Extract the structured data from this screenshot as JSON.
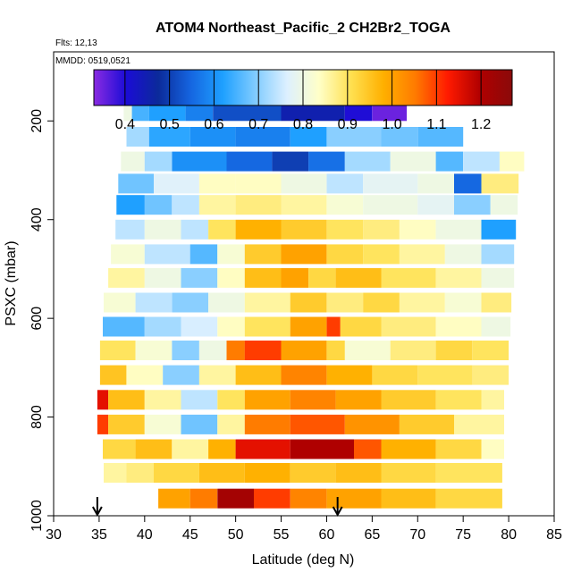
{
  "chart_data": {
    "type": "heatmap",
    "title": "ATOM4 Northeast_Pacific_2 CH2Br2_TOGA",
    "flights_label": "Flts: 12,13",
    "dates_label": "MMDD: 0519,0521",
    "xlabel": "Latitude (deg N)",
    "ylabel": "PSXC (mbar)",
    "xlim": [
      30,
      85
    ],
    "ylim": [
      1000,
      60
    ],
    "x_ticks": [
      30,
      35,
      40,
      45,
      50,
      55,
      60,
      65,
      70,
      75,
      80,
      85
    ],
    "x_tick_labels": [
      "30",
      "35",
      "40",
      "45",
      "50",
      "55",
      "60",
      "65",
      "70",
      "75",
      "80",
      "85"
    ],
    "y_ticks": [
      200,
      400,
      600,
      800,
      1000
    ],
    "y_tick_labels": [
      "200",
      "400",
      "600",
      "800",
      "1000"
    ],
    "colorbar": {
      "range": [
        0.33,
        1.27
      ],
      "ticks": [
        0.4,
        0.5,
        0.6,
        0.7,
        0.8,
        0.9,
        1.0,
        1.1,
        1.2
      ],
      "tick_labels": [
        "0.4",
        "0.5",
        "0.6",
        "0.7",
        "0.8",
        "0.9",
        "1.0",
        "1.1",
        "1.2"
      ],
      "colors": [
        "#8a2be2",
        "#1b0cd6",
        "#0b2a9a",
        "#1565e0",
        "#1ea0ff",
        "#7fcbff",
        "#ddf0ff",
        "#ffffc8",
        "#ffe050",
        "#ffb000",
        "#ff7a00",
        "#ff1a00",
        "#b00000",
        "#8a0a0a"
      ]
    },
    "rows": [
      {
        "p": 180,
        "segments": [
          [
            37.7,
            38.6,
            0.8
          ],
          [
            38.6,
            40.5,
            0.65
          ],
          [
            40.5,
            44.5,
            0.62
          ],
          [
            44.5,
            47.5,
            0.58
          ],
          [
            47.5,
            55,
            0.52
          ],
          [
            55,
            62,
            0.45
          ],
          [
            62,
            65,
            0.4
          ],
          [
            65,
            68.8,
            0.35
          ]
        ]
      },
      {
        "p": 232,
        "segments": [
          [
            38,
            40.5,
            0.72
          ],
          [
            40.5,
            45,
            0.63
          ],
          [
            45,
            50,
            0.6
          ],
          [
            50,
            56,
            0.58
          ],
          [
            56,
            60,
            0.62
          ],
          [
            60,
            66,
            0.7
          ],
          [
            66,
            70,
            0.68
          ],
          [
            70,
            75,
            0.66
          ]
        ]
      },
      {
        "p": 282,
        "segments": [
          [
            37.4,
            40,
            0.8
          ],
          [
            40,
            43,
            0.72
          ],
          [
            43,
            49,
            0.6
          ],
          [
            49,
            54,
            0.55
          ],
          [
            54,
            58,
            0.5
          ],
          [
            58,
            62,
            0.56
          ],
          [
            62,
            67,
            0.72
          ],
          [
            67,
            72,
            0.8
          ],
          [
            72,
            75,
            0.66
          ],
          [
            75,
            79,
            0.74
          ],
          [
            79,
            81.7,
            0.84
          ]
        ]
      },
      {
        "p": 327,
        "segments": [
          [
            37.1,
            41,
            0.68
          ],
          [
            41,
            46,
            0.77
          ],
          [
            46,
            50,
            0.84
          ],
          [
            50,
            55,
            0.84
          ],
          [
            55,
            60,
            0.8
          ],
          [
            60,
            64,
            0.74
          ],
          [
            64,
            70,
            0.78
          ],
          [
            70,
            74,
            0.8
          ],
          [
            74,
            77,
            0.55
          ],
          [
            77,
            81.1,
            0.88
          ]
        ]
      },
      {
        "p": 370,
        "segments": [
          [
            36.9,
            40,
            0.62
          ],
          [
            40,
            43,
            0.68
          ],
          [
            43,
            46,
            0.74
          ],
          [
            46,
            50,
            0.86
          ],
          [
            50,
            55,
            0.88
          ],
          [
            55,
            60,
            0.86
          ],
          [
            60,
            64,
            0.82
          ],
          [
            64,
            70,
            0.8
          ],
          [
            70,
            74,
            0.78
          ],
          [
            74,
            78,
            0.7
          ],
          [
            78,
            81,
            0.8
          ]
        ]
      },
      {
        "p": 420,
        "segments": [
          [
            36.8,
            40,
            0.74
          ],
          [
            40,
            44,
            0.8
          ],
          [
            44,
            47,
            0.74
          ],
          [
            47,
            50,
            0.9
          ],
          [
            50,
            55,
            0.98
          ],
          [
            55,
            60,
            0.94
          ],
          [
            60,
            64,
            0.9
          ],
          [
            64,
            68,
            0.88
          ],
          [
            68,
            72,
            0.84
          ],
          [
            72,
            77,
            0.8
          ],
          [
            77,
            80.8,
            0.62
          ]
        ]
      },
      {
        "p": 470,
        "segments": [
          [
            36.3,
            40,
            0.82
          ],
          [
            40,
            45,
            0.74
          ],
          [
            45,
            48,
            0.66
          ],
          [
            48,
            51,
            0.82
          ],
          [
            51,
            55,
            0.94
          ],
          [
            55,
            60,
            1.0
          ],
          [
            60,
            64,
            0.92
          ],
          [
            64,
            68,
            0.9
          ],
          [
            68,
            73,
            0.86
          ],
          [
            73,
            77,
            0.8
          ],
          [
            77,
            80.6,
            0.72
          ]
        ]
      },
      {
        "p": 518,
        "segments": [
          [
            36,
            40,
            0.86
          ],
          [
            40,
            44,
            0.8
          ],
          [
            44,
            48,
            0.7
          ],
          [
            48,
            51,
            0.84
          ],
          [
            51,
            55,
            0.96
          ],
          [
            55,
            58,
            1.0
          ],
          [
            58,
            61,
            0.92
          ],
          [
            61,
            66,
            0.96
          ],
          [
            66,
            72,
            0.9
          ],
          [
            72,
            77,
            0.86
          ],
          [
            77,
            80.6,
            0.8
          ]
        ]
      },
      {
        "p": 568,
        "segments": [
          [
            35.5,
            39,
            0.82
          ],
          [
            39,
            43,
            0.74
          ],
          [
            43,
            47,
            0.7
          ],
          [
            47,
            51,
            0.8
          ],
          [
            51,
            56,
            0.86
          ],
          [
            56,
            60,
            0.94
          ],
          [
            60,
            64,
            0.88
          ],
          [
            64,
            68,
            0.92
          ],
          [
            68,
            73,
            0.86
          ],
          [
            73,
            77,
            0.82
          ],
          [
            77,
            80.3,
            0.88
          ]
        ]
      },
      {
        "p": 617,
        "segments": [
          [
            35.4,
            40,
            0.66
          ],
          [
            40,
            44,
            0.72
          ],
          [
            44,
            48,
            0.76
          ],
          [
            48,
            51,
            0.84
          ],
          [
            51,
            56,
            0.9
          ],
          [
            56,
            60,
            1.0
          ],
          [
            60,
            61.5,
            1.1
          ],
          [
            61.5,
            66,
            0.92
          ],
          [
            66,
            72,
            0.88
          ],
          [
            72,
            77,
            0.84
          ],
          [
            77,
            80.2,
            0.8
          ]
        ]
      },
      {
        "p": 665,
        "segments": [
          [
            35.1,
            39,
            0.9
          ],
          [
            39,
            43,
            0.82
          ],
          [
            43,
            46,
            0.7
          ],
          [
            46,
            49,
            0.8
          ],
          [
            49,
            51,
            1.05
          ],
          [
            51,
            55,
            1.1
          ],
          [
            55,
            60,
            1.0
          ],
          [
            60,
            62,
            0.92
          ],
          [
            62,
            67,
            0.82
          ],
          [
            67,
            72,
            0.88
          ],
          [
            72,
            76,
            0.92
          ],
          [
            76,
            80,
            0.9
          ]
        ]
      },
      {
        "p": 715,
        "segments": [
          [
            35.1,
            38,
            0.95
          ],
          [
            38,
            42,
            0.84
          ],
          [
            42,
            46,
            0.7
          ],
          [
            46,
            50,
            0.86
          ],
          [
            50,
            55,
            0.96
          ],
          [
            55,
            60,
            1.04
          ],
          [
            60,
            65,
            0.98
          ],
          [
            65,
            70,
            0.92
          ],
          [
            70,
            76,
            0.9
          ],
          [
            76,
            80,
            0.88
          ]
        ]
      },
      {
        "p": 765,
        "segments": [
          [
            34.8,
            36,
            1.15
          ],
          [
            36,
            40,
            0.96
          ],
          [
            40,
            44,
            0.86
          ],
          [
            44,
            48,
            0.74
          ],
          [
            48,
            51,
            0.9
          ],
          [
            51,
            56,
            1.0
          ],
          [
            56,
            61,
            1.04
          ],
          [
            61,
            66,
            1.0
          ],
          [
            66,
            72,
            0.94
          ],
          [
            72,
            77,
            0.9
          ],
          [
            77,
            79.5,
            0.86
          ]
        ]
      },
      {
        "p": 815,
        "segments": [
          [
            34.8,
            36,
            1.1
          ],
          [
            36,
            40,
            0.94
          ],
          [
            40,
            44,
            0.82
          ],
          [
            44,
            48,
            0.68
          ],
          [
            48,
            51,
            0.86
          ],
          [
            51,
            56,
            1.05
          ],
          [
            56,
            62,
            1.08
          ],
          [
            62,
            68,
            1.02
          ],
          [
            68,
            74,
            0.94
          ],
          [
            74,
            79.5,
            0.86
          ]
        ]
      },
      {
        "p": 865,
        "segments": [
          [
            35.4,
            39,
            0.92
          ],
          [
            39,
            43,
            0.96
          ],
          [
            43,
            47,
            0.86
          ],
          [
            47,
            50,
            0.98
          ],
          [
            50,
            56,
            1.15
          ],
          [
            56,
            63,
            1.2
          ],
          [
            63,
            66,
            1.08
          ],
          [
            66,
            72,
            0.98
          ],
          [
            72,
            77,
            0.92
          ],
          [
            77,
            79.5,
            0.84
          ]
        ]
      },
      {
        "p": 913,
        "segments": [
          [
            35.5,
            38,
            0.86
          ],
          [
            38,
            41,
            0.88
          ],
          [
            41,
            46,
            0.92
          ],
          [
            46,
            51,
            0.96
          ],
          [
            51,
            56,
            0.98
          ],
          [
            56,
            61,
            0.94
          ],
          [
            61,
            66,
            0.96
          ],
          [
            66,
            72,
            0.92
          ],
          [
            72,
            79.3,
            0.9
          ]
        ]
      },
      {
        "p": 965,
        "segments": [
          [
            41.5,
            45,
            1.0
          ],
          [
            45,
            48,
            1.05
          ],
          [
            48,
            52,
            1.22
          ],
          [
            52,
            56,
            1.1
          ],
          [
            56,
            60,
            1.04
          ],
          [
            60,
            66,
            1.0
          ],
          [
            66,
            72,
            0.96
          ],
          [
            72,
            79.3,
            0.92
          ]
        ]
      }
    ],
    "arrows_lat": [
      34.8,
      61.2
    ]
  }
}
